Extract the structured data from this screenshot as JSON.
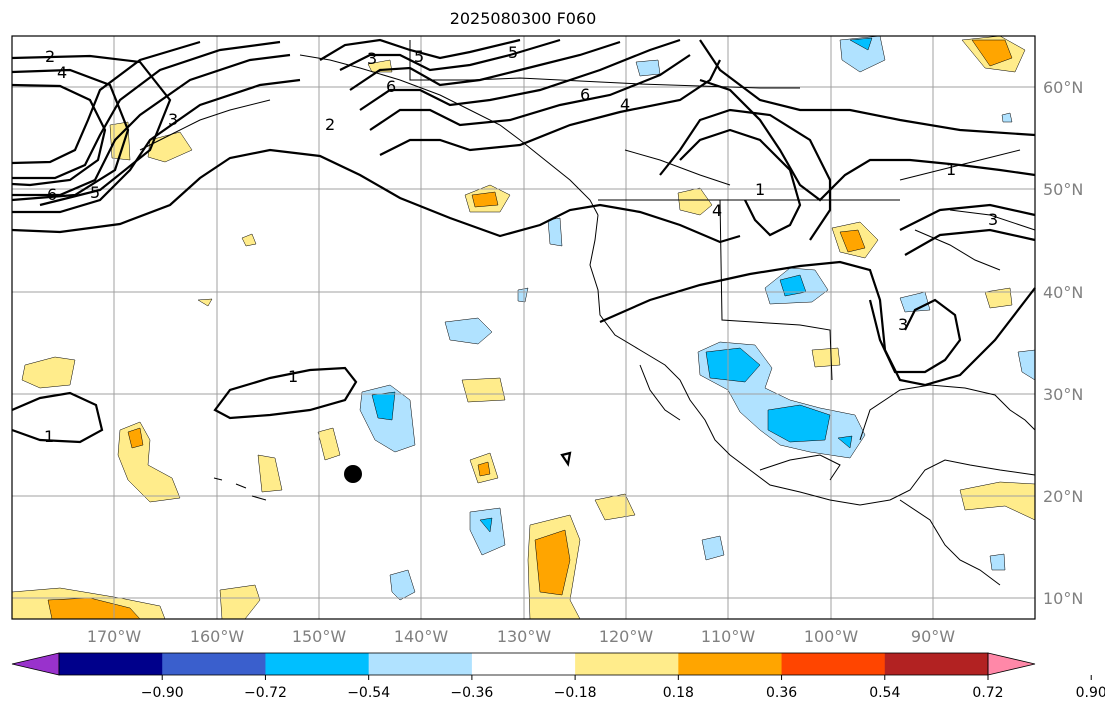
{
  "title": "2025080300 F060",
  "lat_labels": [
    "60°N",
    "50°N",
    "40°N",
    "30°N",
    "20°N",
    "10°N"
  ],
  "lon_labels": [
    "170°W",
    "160°W",
    "150°W",
    "140°W",
    "130°W",
    "120°W",
    "110°W",
    "100°W",
    "90°W"
  ],
  "colorbar": {
    "tick_labels": [
      "−0.90",
      "−0.72",
      "−0.54",
      "−0.36",
      "−0.18",
      "0.18",
      "0.36",
      "0.54",
      "0.72",
      "0.90"
    ],
    "colors": [
      "#9932cc",
      "#00008b",
      "#3a5fcd",
      "#00bfff",
      "#b0e2ff",
      "#ffffff",
      "#ffec8b",
      "#ffa500",
      "#ff4500",
      "#b22222",
      "#ff88a8"
    ]
  },
  "contour_labels": [
    "1",
    "2",
    "3",
    "4",
    "5",
    "6"
  ]
}
